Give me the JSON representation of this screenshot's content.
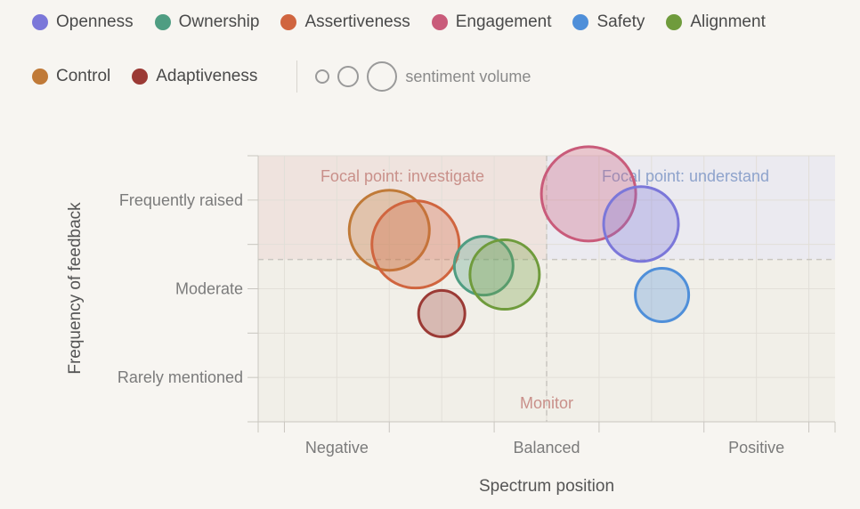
{
  "chart_data": {
    "type": "scatter",
    "subtype": "bubble",
    "xlabel": "Spectrum position",
    "ylabel": "Frequency of feedback",
    "xlim": [
      -2.75,
      2.75
    ],
    "ylim": [
      -1.5,
      1.5
    ],
    "x_ticks": [
      {
        "value": -2,
        "label": "Negative"
      },
      {
        "value": 0,
        "label": "Balanced"
      },
      {
        "value": 2,
        "label": "Positive"
      }
    ],
    "y_ticks": [
      {
        "value": 1,
        "label": "Frequently raised"
      },
      {
        "value": 0,
        "label": "Moderate"
      },
      {
        "value": -1,
        "label": "Rarely mentioned"
      }
    ],
    "threshold_x": 0,
    "threshold_y": 0.33,
    "quadrant_labels": {
      "top_left": "Focal point: investigate",
      "top_right": "Focal point: understand",
      "bottom": "Monitor"
    },
    "size_legend_label": "sentiment volume",
    "series": [
      {
        "name": "Openness",
        "color": "#7b77d9",
        "x": 0.9,
        "y": 0.73,
        "volume": 42
      },
      {
        "name": "Ownership",
        "color": "#4f9d82",
        "x": -0.6,
        "y": 0.26,
        "volume": 33
      },
      {
        "name": "Assertiveness",
        "color": "#d0653f",
        "x": -1.25,
        "y": 0.5,
        "volume": 49
      },
      {
        "name": "Engagement",
        "color": "#c95b7a",
        "x": 0.4,
        "y": 1.07,
        "volume": 53
      },
      {
        "name": "Safety",
        "color": "#4f8fd9",
        "x": 1.1,
        "y": -0.07,
        "volume": 30
      },
      {
        "name": "Alignment",
        "color": "#6f9b3c",
        "x": -0.4,
        "y": 0.16,
        "volume": 39
      },
      {
        "name": "Control",
        "color": "#c07a38",
        "x": -1.5,
        "y": 0.66,
        "volume": 45
      },
      {
        "name": "Adaptiveness",
        "color": "#9b3a35",
        "x": -1.0,
        "y": -0.28,
        "volume": 26
      }
    ]
  }
}
